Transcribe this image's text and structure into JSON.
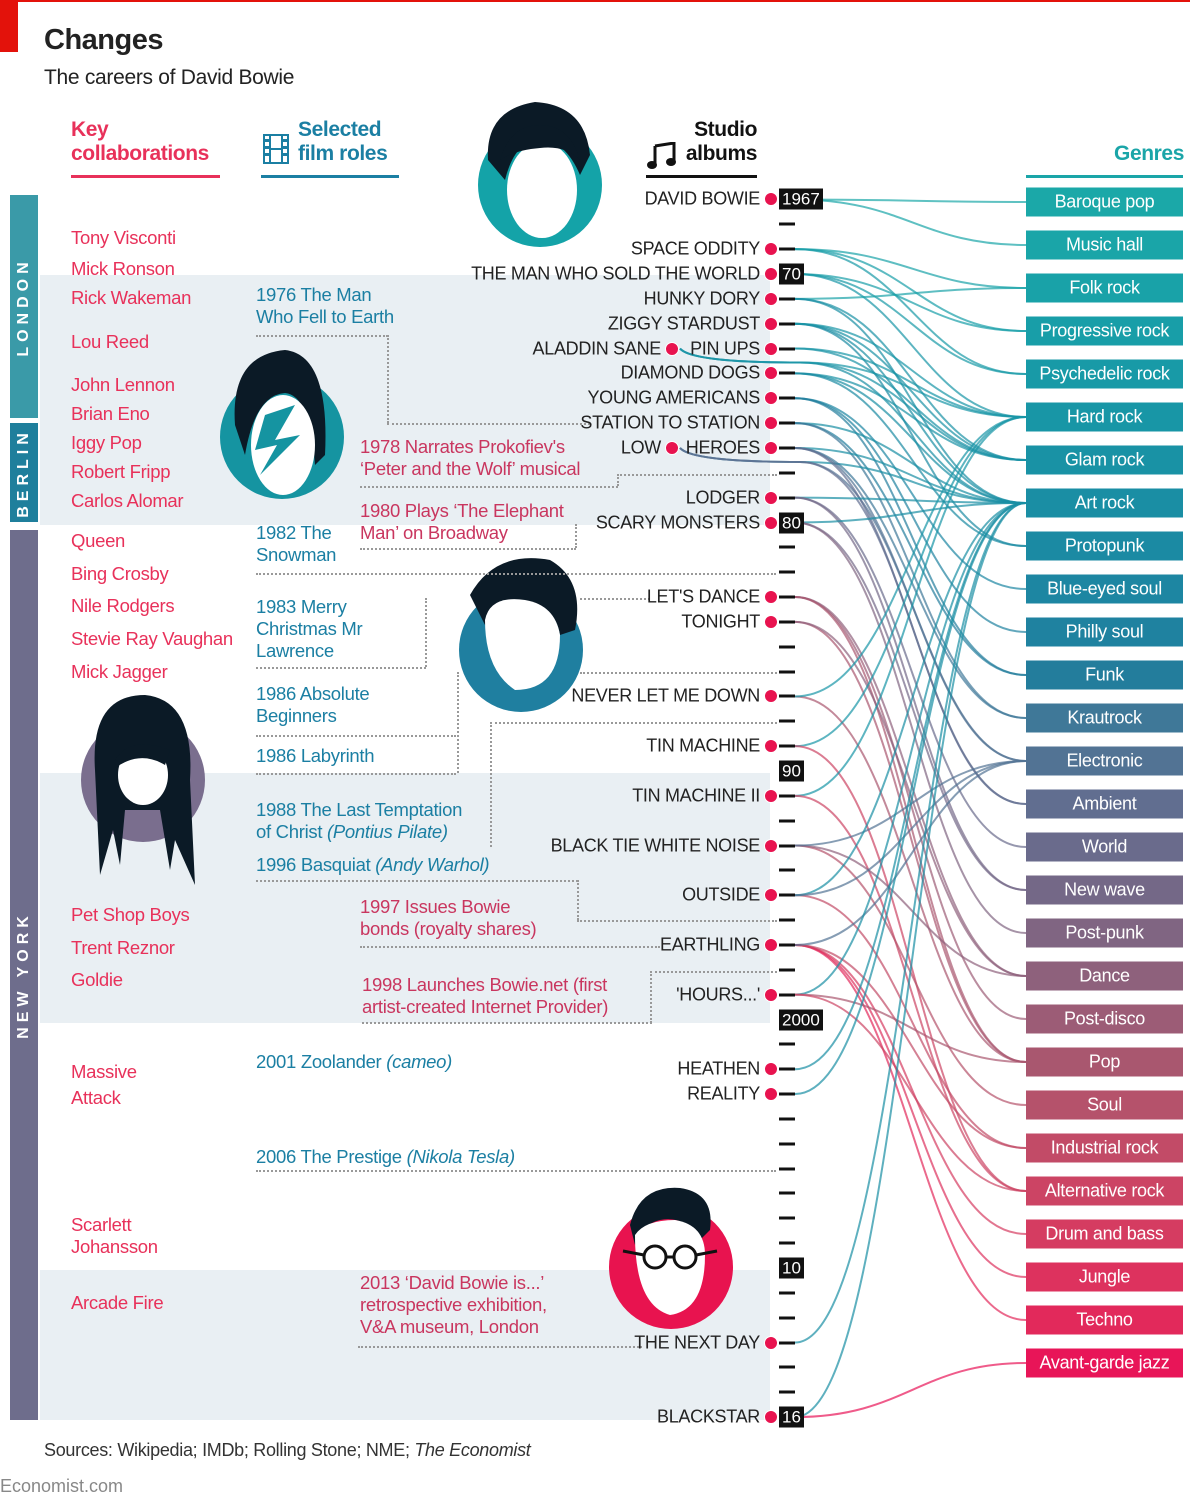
{
  "header": {
    "title": "Changes",
    "subtitle": "The careers of David Bowie"
  },
  "columns": {
    "collab_1": "Key",
    "collab_2": "collaborations",
    "film_1": "Selected",
    "film_2": "film roles",
    "albums_1": "Studio",
    "albums_2": "albums",
    "genres": "Genres"
  },
  "sections": [
    "LONDON",
    "BERLIN",
    "NEW YORK"
  ],
  "collaborators": [
    "Tony Visconti",
    "Mick Ronson",
    "Rick Wakeman",
    "Lou Reed",
    "John Lennon",
    "Brian Eno",
    "Iggy Pop",
    "Robert Fripp",
    "Carlos Alomar",
    "Queen",
    "Bing Crosby",
    "Nile Rodgers",
    "Stevie Ray Vaughan",
    "Mick Jagger",
    "Pet Shop Boys",
    "Trent Reznor",
    "Goldie",
    "Massive",
    "Attack",
    "Scarlett",
    "Johansson",
    "Arcade Fire"
  ],
  "films": [
    {
      "year": "1976",
      "l1": "The Man",
      "l2": "Who Fell to Earth"
    },
    {
      "year": "1982",
      "l1": "The",
      "l2": "Snowman"
    },
    {
      "year": "1983",
      "l1": "Merry",
      "l2": "Christmas Mr",
      "l3": "Lawrence"
    },
    {
      "year": "1986",
      "l1": "Absolute",
      "l2": "Beginners"
    },
    {
      "year": "1986",
      "l1": "Labyrinth"
    },
    {
      "year": "1988",
      "l1": "The Last Temptation",
      "l2": "of Christ",
      "role": "(Pontius Pilate)"
    },
    {
      "year": "1996",
      "l1": "Basquiat",
      "role": "(Andy Warhol)"
    },
    {
      "year": "2001",
      "l1": "Zoolander",
      "role": "(cameo)"
    },
    {
      "year": "2006",
      "l1": "The Prestige",
      "role": "(Nikola Tesla)"
    }
  ],
  "events": [
    {
      "l1": "1978 Narrates Prokofiev's",
      "l2": "‘Peter and the Wolf’ musical"
    },
    {
      "l1": "1980 Plays ‘The Elephant",
      "l2": "Man’ on Broadway"
    },
    {
      "l1": "1997 Issues Bowie",
      "l2": "bonds (royalty shares)"
    },
    {
      "l1": "1998 Launches Bowie.net (first",
      "l2": "artist-created Internet Provider)"
    },
    {
      "l1": "2013 ‘David Bowie is...’",
      "l2": "retrospective exhibition,",
      "l3": "V&A museum, London"
    }
  ],
  "sources": "Sources: Wikipedia; IMDb; Rolling Stone; NME; ",
  "sources_italic": "The Economist",
  "site": "Economist.com",
  "chart_data": {
    "type": "table",
    "title": "Studio albums and genres",
    "year_range": [
      1967,
      2016
    ],
    "year_labels": [
      {
        "year": 1967,
        "label": "1967"
      },
      {
        "year": 1970,
        "label": "70"
      },
      {
        "year": 1980,
        "label": "80"
      },
      {
        "year": 1990,
        "label": "90"
      },
      {
        "year": 2000,
        "label": "2000"
      },
      {
        "year": 2010,
        "label": "10"
      },
      {
        "year": 2016,
        "label": "16"
      }
    ],
    "shaded_periods": [
      [
        1970,
        1980
      ],
      [
        1990,
        2000
      ],
      [
        2010,
        2016
      ]
    ],
    "albums": [
      {
        "name": "DAVID BOWIE",
        "year": 1967,
        "genres": [
          "Baroque pop",
          "Music hall"
        ]
      },
      {
        "name": "SPACE ODDITY",
        "year": 1969,
        "genres": [
          "Folk rock",
          "Psychedelic rock",
          "Progressive rock"
        ]
      },
      {
        "name": "THE MAN WHO SOLD THE WORLD",
        "year": 1970,
        "genres": [
          "Hard rock",
          "Progressive rock",
          "Psychedelic rock"
        ]
      },
      {
        "name": "HUNKY DORY",
        "year": 1971,
        "genres": [
          "Folk rock",
          "Glam rock",
          "Art rock"
        ]
      },
      {
        "name": "ZIGGY STARDUST",
        "year": 1972,
        "genres": [
          "Glam rock",
          "Art rock",
          "Protopunk",
          "Hard rock"
        ]
      },
      {
        "name": "ALADDIN SANE",
        "year": 1973,
        "genres": [
          "Glam rock",
          "Art rock",
          "Hard rock"
        ]
      },
      {
        "name": "PIN UPS",
        "year": 1973,
        "genres": [
          "Glam rock",
          "Hard rock"
        ]
      },
      {
        "name": "DIAMOND DOGS",
        "year": 1974,
        "genres": [
          "Glam rock",
          "Art rock",
          "Protopunk"
        ]
      },
      {
        "name": "YOUNG AMERICANS",
        "year": 1975,
        "genres": [
          "Blue-eyed soul",
          "Philly soul",
          "Funk"
        ]
      },
      {
        "name": "STATION TO STATION",
        "year": 1976,
        "genres": [
          "Art rock",
          "Funk",
          "Krautrock"
        ]
      },
      {
        "name": "LOW",
        "year": 1977,
        "genres": [
          "Art rock",
          "Electronic",
          "Ambient"
        ]
      },
      {
        "name": "HEROES",
        "year": 1977,
        "genres": [
          "Art rock",
          "Krautrock",
          "Electronic",
          "Ambient"
        ]
      },
      {
        "name": "LODGER",
        "year": 1979,
        "genres": [
          "Art rock",
          "World",
          "New wave"
        ]
      },
      {
        "name": "SCARY MONSTERS",
        "year": 1980,
        "genres": [
          "Art rock",
          "New wave",
          "Post-punk"
        ]
      },
      {
        "name": "LET'S DANCE",
        "year": 1983,
        "genres": [
          "Dance",
          "Post-disco",
          "Pop"
        ]
      },
      {
        "name": "TONIGHT",
        "year": 1984,
        "genres": [
          "Pop",
          "Dance"
        ]
      },
      {
        "name": "NEVER LET ME DOWN",
        "year": 1987,
        "genres": [
          "Pop",
          "Hard rock"
        ]
      },
      {
        "name": "TIN MACHINE",
        "year": 1989,
        "genres": [
          "Hard rock",
          "Alternative rock"
        ]
      },
      {
        "name": "TIN MACHINE II",
        "year": 1991,
        "genres": [
          "Hard rock",
          "Alternative rock"
        ]
      },
      {
        "name": "BLACK TIE WHITE NOISE",
        "year": 1993,
        "genres": [
          "Soul",
          "Dance",
          "Electronic"
        ]
      },
      {
        "name": "OUTSIDE",
        "year": 1995,
        "genres": [
          "Industrial rock",
          "Art rock",
          "Electronic"
        ]
      },
      {
        "name": "EARTHLING",
        "year": 1997,
        "genres": [
          "Drum and bass",
          "Jungle",
          "Techno",
          "Industrial rock",
          "Electronic"
        ]
      },
      {
        "name": "'HOURS...'",
        "year": 1999,
        "genres": [
          "Art rock",
          "Pop",
          "Alternative rock"
        ]
      },
      {
        "name": "HEATHEN",
        "year": 2002,
        "genres": [
          "Art rock"
        ]
      },
      {
        "name": "REALITY",
        "year": 2003,
        "genres": [
          "Art rock"
        ]
      },
      {
        "name": "THE NEXT DAY",
        "year": 2013,
        "genres": [
          "Art rock"
        ]
      },
      {
        "name": "BLACKSTAR",
        "year": 2016,
        "genres": [
          "Art rock",
          "Avant-garde jazz"
        ]
      }
    ],
    "genres": [
      {
        "name": "Baroque pop",
        "color": "#1ba8a8"
      },
      {
        "name": "Music hall",
        "color": "#1aa5a8"
      },
      {
        "name": "Folk rock",
        "color": "#19a2a8"
      },
      {
        "name": "Progressive rock",
        "color": "#189ea8"
      },
      {
        "name": "Psychedelic rock",
        "color": "#189aa7"
      },
      {
        "name": "Hard rock",
        "color": "#1896a6"
      },
      {
        "name": "Glam rock",
        "color": "#1992a5"
      },
      {
        "name": "Art rock",
        "color": "#1a8ea4"
      },
      {
        "name": "Protopunk",
        "color": "#1b8aa3"
      },
      {
        "name": "Blue-eyed soul",
        "color": "#1d86a2"
      },
      {
        "name": "Philly soul",
        "color": "#1f82a0"
      },
      {
        "name": "Funk",
        "color": "#237d9c"
      },
      {
        "name": "Krautrock",
        "color": "#3f7898"
      },
      {
        "name": "Electronic",
        "color": "#527394"
      },
      {
        "name": "Ambient",
        "color": "#616e90"
      },
      {
        "name": "World",
        "color": "#6a6b8c"
      },
      {
        "name": "New wave",
        "color": "#746887"
      },
      {
        "name": "Post-punk",
        "color": "#806582"
      },
      {
        "name": "Dance",
        "color": "#8e617c"
      },
      {
        "name": "Post-disco",
        "color": "#9c5c76"
      },
      {
        "name": "Pop",
        "color": "#a9576f"
      },
      {
        "name": "Soul",
        "color": "#b5526b"
      },
      {
        "name": "Industrial rock",
        "color": "#c24b67"
      },
      {
        "name": "Alternative rock",
        "color": "#cc4464"
      },
      {
        "name": "Drum and bass",
        "color": "#d53c61"
      },
      {
        "name": "Jungle",
        "color": "#dd325e"
      },
      {
        "name": "Techno",
        "color": "#e2295b"
      },
      {
        "name": "Avant-garde jazz",
        "color": "#e81558"
      }
    ]
  }
}
